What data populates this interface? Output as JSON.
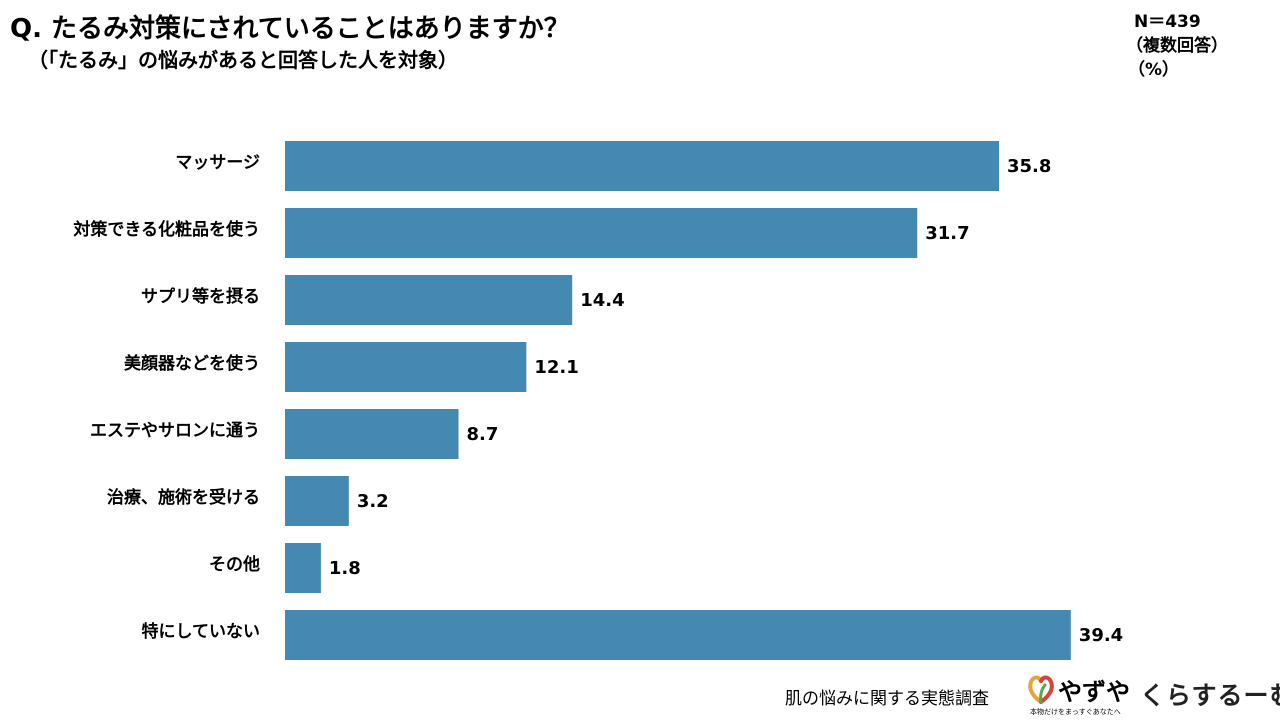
{
  "header": {
    "title": "Q. たるみ対策にされていることはありますか？",
    "subtitle": "（「たるみ」の悩みがあると回答した人を対象）",
    "n": "N＝439",
    "multi": "（複数回答）",
    "unit": "（%）"
  },
  "chart_data": {
    "type": "bar",
    "orientation": "horizontal",
    "title": "Q. たるみ対策にされていることはありますか？",
    "xlabel": "",
    "ylabel": "",
    "xlim": [
      0,
      40
    ],
    "grid": false,
    "categories": [
      "マッサージ",
      "対策できる化粧品を使う",
      "サプリ等を摂る",
      "美顔器などを使う",
      "エステやサロンに通う",
      "治療、施術を受ける",
      "その他",
      "特にしていない"
    ],
    "values": [
      35.8,
      31.7,
      14.4,
      12.1,
      8.7,
      3.2,
      1.8,
      39.4
    ],
    "value_labels": [
      "35.8",
      "31.7",
      "14.4",
      "12.1",
      "8.7",
      "3.2",
      "1.8",
      "39.4"
    ],
    "bar_color": "#4589b2"
  },
  "footer": {
    "survey": "肌の悩みに関する実態調査",
    "logo_word": "やずや",
    "logo_tagline": "本物だけをまっすぐあなたへ",
    "brand2": "くらするーむ",
    "logo_colors": [
      "#e8a33d",
      "#d9413a",
      "#5aa54a"
    ]
  }
}
